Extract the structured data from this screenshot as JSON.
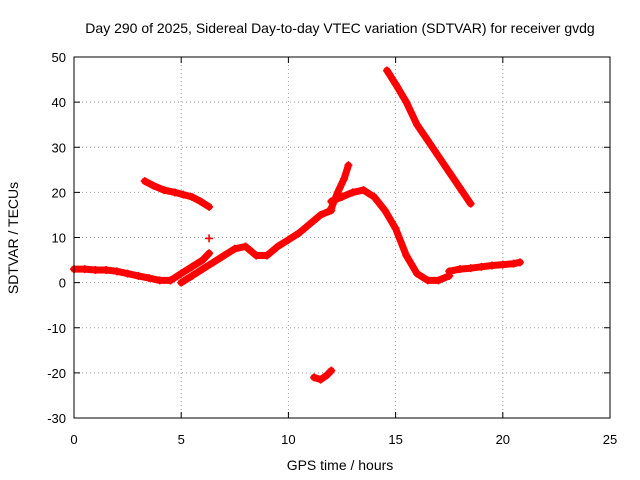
{
  "chart_data": {
    "type": "scatter",
    "title": "Day 290 of 2025, Sidereal Day-to-day VTEC variation (SDTVAR) for receiver gvdg",
    "xlabel": "GPS time / hours",
    "ylabel": "SDTVAR / TECUs",
    "xlim": [
      0,
      25
    ],
    "ylim": [
      -30,
      50
    ],
    "xticks": [
      0,
      5,
      10,
      15,
      20,
      25
    ],
    "yticks": [
      -30,
      -20,
      -10,
      0,
      10,
      20,
      30,
      40,
      50
    ],
    "x_tick_labels": [
      "0",
      "5",
      "10",
      "15",
      "20",
      "25"
    ],
    "y_tick_labels": [
      "-30",
      "-20",
      "-10",
      "0",
      "10",
      "20",
      "30",
      "40",
      "50"
    ],
    "grid": true,
    "legend": "none",
    "marker": "plus",
    "color": "#ff0000",
    "series": [
      {
        "name": "arc-1",
        "x": [
          0,
          0.5,
          1,
          1.5,
          2,
          2.5,
          3,
          3.5,
          4,
          4.5
        ],
        "y": [
          3,
          3,
          2.8,
          2.8,
          2.5,
          2,
          1.5,
          1,
          0.5,
          0.5
        ]
      },
      {
        "name": "arc-2",
        "x": [
          3.3,
          3.7,
          4.2,
          4.7,
          5.1,
          5.5,
          5.9,
          6.3
        ],
        "y": [
          22.5,
          21.5,
          20.5,
          20,
          19.5,
          19,
          18,
          16.8
        ]
      },
      {
        "name": "arc-3",
        "x": [
          4.5,
          5,
          5.5,
          6,
          6.3
        ],
        "y": [
          0.5,
          2,
          3.5,
          5,
          6.5
        ]
      },
      {
        "name": "arc-4",
        "x": [
          5,
          5.5,
          6,
          6.5,
          7,
          7.5,
          8,
          8.5,
          9,
          9.5,
          10,
          10.5,
          11,
          11.5,
          12
        ],
        "y": [
          0,
          1.5,
          3,
          4.5,
          6,
          7.5,
          8,
          6,
          6,
          8,
          9.5,
          11,
          13,
          15,
          16
        ]
      },
      {
        "name": "arc-5",
        "x": [
          12,
          12.3,
          12.6,
          12.8
        ],
        "y": [
          16.5,
          20,
          23,
          26
        ]
      },
      {
        "name": "arc-6",
        "x": [
          12,
          12.5,
          13,
          13.5,
          14,
          14.5,
          15,
          15.5,
          16,
          16.5,
          17,
          17.5
        ],
        "y": [
          18,
          19,
          20,
          20.5,
          19,
          16,
          12,
          6,
          2,
          0.5,
          0.5,
          1.5
        ]
      },
      {
        "name": "arc-7",
        "x": [
          14.6,
          15,
          15.5,
          16,
          16.5,
          17,
          17.5,
          18,
          18.5
        ],
        "y": [
          47,
          44,
          40,
          35,
          31.5,
          28,
          24.5,
          21,
          17.5
        ]
      },
      {
        "name": "arc-8",
        "x": [
          17.5,
          18,
          18.5,
          19,
          19.5,
          20,
          20.5,
          20.8
        ],
        "y": [
          2.5,
          3,
          3.2,
          3.5,
          3.8,
          4,
          4.2,
          4.5
        ]
      },
      {
        "name": "arc-9",
        "x": [
          11.2,
          11.5,
          11.8,
          12
        ],
        "y": [
          -21,
          -21.5,
          -20.5,
          -19.5
        ]
      },
      {
        "name": "outlier",
        "x": [
          6.3
        ],
        "y": [
          9.8
        ]
      }
    ]
  }
}
